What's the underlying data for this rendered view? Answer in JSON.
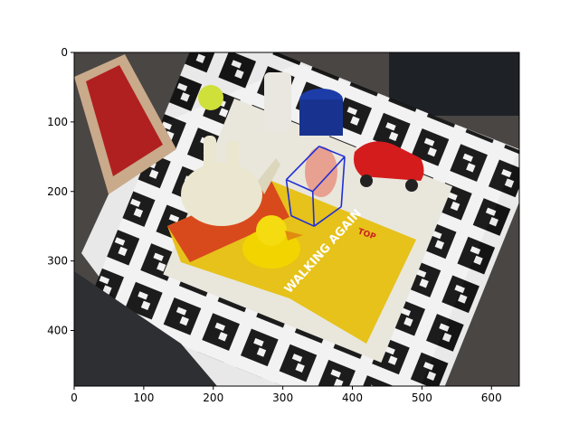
{
  "chart_data": {
    "type": "image",
    "title": "",
    "xlabel": "",
    "ylabel": "",
    "xlim": [
      0,
      640
    ],
    "ylim": [
      480,
      0
    ],
    "x_ticks": [
      0,
      100,
      200,
      300,
      400,
      500,
      600
    ],
    "y_ticks": [
      0,
      100,
      200,
      300,
      400
    ],
    "image_description": "photo of an ArUco marker board on a desk with a watering can, rubber duck, blue cup, toy car and a yellow magazine",
    "magazine_text": [
      "WALKING AGAIN",
      "TOP"
    ],
    "overlay": {
      "shape": "3d-box",
      "color": "#1f2fd6",
      "vertices": [
        {
          "x": 352,
          "y": 135
        },
        {
          "x": 389,
          "y": 150
        },
        {
          "x": 384,
          "y": 222
        },
        {
          "x": 345,
          "y": 250
        },
        {
          "x": 305,
          "y": 183
        },
        {
          "x": 312,
          "y": 235
        },
        {
          "x": 343,
          "y": 200
        }
      ],
      "edges": [
        [
          0,
          1
        ],
        [
          1,
          6
        ],
        [
          6,
          4
        ],
        [
          4,
          0
        ],
        [
          1,
          2
        ],
        [
          2,
          3
        ],
        [
          3,
          5
        ],
        [
          5,
          4
        ],
        [
          6,
          3
        ]
      ]
    }
  }
}
